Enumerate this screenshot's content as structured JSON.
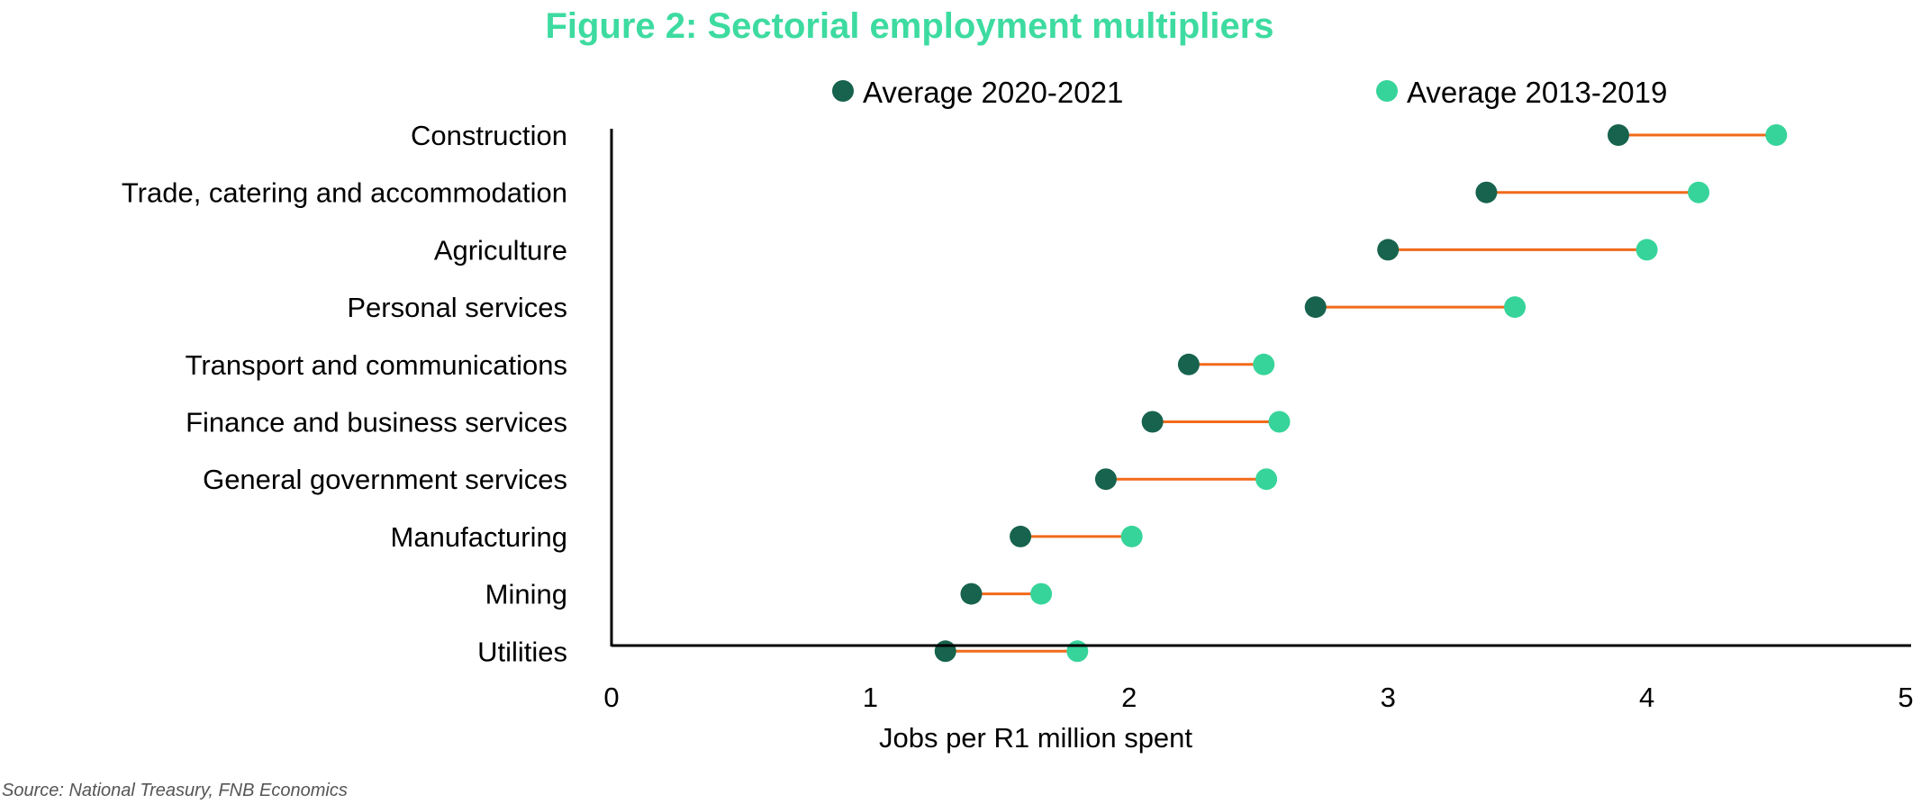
{
  "chart_data": {
    "type": "dumbbell",
    "title": "Figure 2: Sectorial employment multipliers",
    "xlabel": "Jobs per R1 million spent",
    "ylabel": "",
    "xlim": [
      0,
      5
    ],
    "xticks": [
      "0",
      "1",
      "2",
      "3",
      "4",
      "5"
    ],
    "legend_position": "top",
    "categories": [
      "Construction",
      "Trade, catering and accommodation",
      "Agriculture",
      "Personal services",
      "Transport and communications",
      "Finance and business services",
      "General government services",
      "Manufacturing",
      "Mining",
      "Utilities"
    ],
    "series": [
      {
        "name": "Average 2020-2021",
        "color": "#17634d",
        "values": [
          3.89,
          3.38,
          3.0,
          2.72,
          2.23,
          2.09,
          1.91,
          1.58,
          1.39,
          1.29
        ]
      },
      {
        "name": "Average 2013-2019",
        "color": "#36d49a",
        "values": [
          4.5,
          4.2,
          4.0,
          3.49,
          2.52,
          2.58,
          2.53,
          2.01,
          1.66,
          1.8
        ]
      }
    ],
    "connector_color": "#f26a1b",
    "grid": false,
    "source": "Source: National Treasury, FNB Economics"
  },
  "colors": {
    "title": "#3ddba0",
    "axis": "#000000",
    "text": "#000000",
    "source": "#555555"
  }
}
